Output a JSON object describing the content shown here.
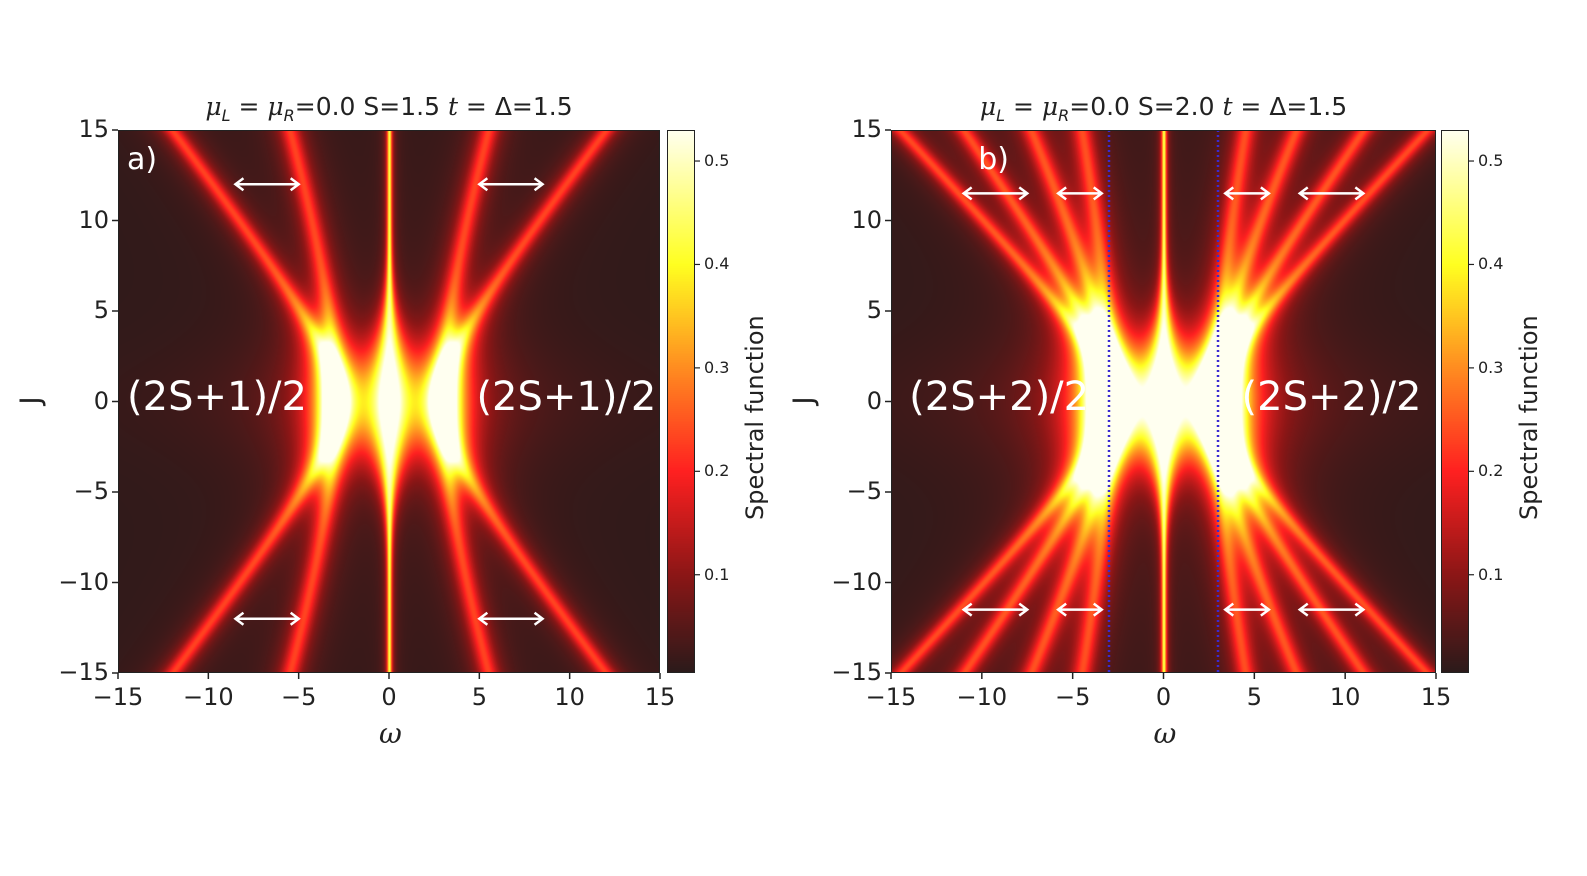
{
  "chart_data": [
    {
      "type": "heatmap",
      "panel_label": "a)",
      "title": "μL = μR=0.0   S=1.5   t = Δ=1.5",
      "title_parts": {
        "mu": "μ",
        "L": "L",
        "eq1": " = ",
        "R": "R",
        "eq2": "=0.0   S=1.5   ",
        "t": "t",
        "rest": " = Δ=1.5"
      },
      "xlabel": "ω",
      "ylabel": "J",
      "xlim": [
        -15,
        15
      ],
      "ylim": [
        -15,
        15
      ],
      "xticks": [
        "−15",
        "−10",
        "−5",
        "0",
        "5",
        "10",
        "15"
      ],
      "xtick_values": [
        -15,
        -10,
        -5,
        0,
        5,
        10,
        15
      ],
      "yticks": [
        "15",
        "10",
        "5",
        "0",
        "−5",
        "−10",
        "−15"
      ],
      "ytick_values": [
        15,
        10,
        5,
        0,
        -5,
        -10,
        -15
      ],
      "colorbar": {
        "label": "Spectral function",
        "range": [
          0.005,
          0.53
        ],
        "ticks": [
          "0.1",
          "0.2",
          "0.3",
          "0.4",
          "0.5"
        ],
        "tick_values": [
          0.1,
          0.2,
          0.3,
          0.4,
          0.5
        ],
        "colormap": [
          "#2a1a1a",
          "#8b1616",
          "#ff2020",
          "#ff8c20",
          "#ffff20",
          "#fffff0"
        ]
      },
      "central_peak_omega": 0,
      "branch_gap_omega_at_J0": 3,
      "branch_omega_at_J15": [
        5.5,
        12
      ],
      "annotations": [
        {
          "text": "(2S+1)/2",
          "side": "left"
        },
        {
          "text": "(2S+1)/2",
          "side": "right"
        }
      ],
      "arrows": [
        {
          "J": 12,
          "omega": [
            -8.5,
            -5
          ]
        },
        {
          "J": 12,
          "omega": [
            5,
            8.5
          ]
        },
        {
          "J": -12,
          "omega": [
            -8.5,
            -5
          ]
        },
        {
          "J": -12,
          "omega": [
            5,
            8.5
          ]
        }
      ],
      "dotted_lines_omega": []
    },
    {
      "type": "heatmap",
      "panel_label": "b)",
      "title": "μL = μR=0.0   S=2.0   t = Δ=1.5",
      "title_parts": {
        "mu": "μ",
        "L": "L",
        "eq1": " = ",
        "R": "R",
        "eq2": "=0.0   S=2.0   ",
        "t": "t",
        "rest": " = Δ=1.5"
      },
      "xlabel": "ω",
      "ylabel": "J",
      "xlim": [
        -15,
        15
      ],
      "ylim": [
        -15,
        15
      ],
      "xticks": [
        "−15",
        "−10",
        "−5",
        "0",
        "5",
        "10",
        "15"
      ],
      "xtick_values": [
        -15,
        -10,
        -5,
        0,
        5,
        10,
        15
      ],
      "yticks": [
        "15",
        "10",
        "5",
        "0",
        "−5",
        "−10",
        "−15"
      ],
      "ytick_values": [
        15,
        10,
        5,
        0,
        -5,
        -10,
        -15
      ],
      "colorbar": {
        "label": "Spectral function",
        "range": [
          0.005,
          0.53
        ],
        "ticks": [
          "0.1",
          "0.2",
          "0.3",
          "0.4",
          "0.5"
        ],
        "tick_values": [
          0.1,
          0.2,
          0.3,
          0.4,
          0.5
        ],
        "colormap": [
          "#2a1a1a",
          "#8b1616",
          "#ff2020",
          "#ff8c20",
          "#ffff20",
          "#fffff0"
        ]
      },
      "central_peak_omega": 0,
      "branch_gap_omega_at_J0": 3,
      "branch_omega_at_J15": [
        4.5,
        7.3,
        11,
        14.5
      ],
      "annotations": [
        {
          "text": "(2S+2)/2",
          "side": "left"
        },
        {
          "text": "(2S+2)/2",
          "side": "right"
        }
      ],
      "arrows": [
        {
          "J": 11.5,
          "omega": [
            -11,
            -7.5
          ]
        },
        {
          "J": 11.5,
          "omega": [
            -5.8,
            -3.4
          ]
        },
        {
          "J": 11.5,
          "omega": [
            3.4,
            5.8
          ]
        },
        {
          "J": 11.5,
          "omega": [
            7.5,
            11
          ]
        },
        {
          "J": -11.5,
          "omega": [
            -11,
            -7.5
          ]
        },
        {
          "J": -11.5,
          "omega": [
            -5.8,
            -3.4
          ]
        },
        {
          "J": -11.5,
          "omega": [
            3.4,
            5.8
          ]
        },
        {
          "J": -11.5,
          "omega": [
            7.5,
            11
          ]
        }
      ],
      "dotted_lines_omega": [
        -3,
        3
      ],
      "dotted_line_color": "#3a2ad0"
    }
  ]
}
